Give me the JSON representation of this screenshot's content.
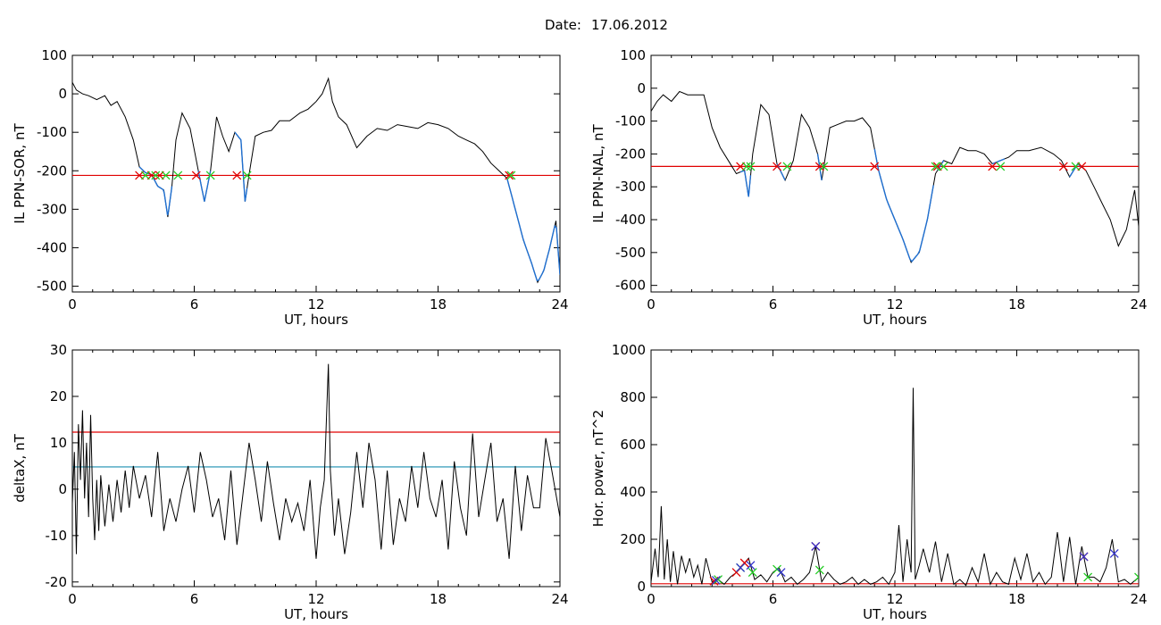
{
  "header": {
    "date_label": "Date:",
    "date_value": "17.06.2012"
  },
  "colors": {
    "trace": "#000000",
    "threshold": "#e00000",
    "secondary_threshold": "#1a8fb0",
    "segment": "#1f6fd0",
    "marker_start": "#e00000",
    "marker_end": "#22cc22",
    "marker_peak": "#3333cc"
  },
  "chart_data": [
    {
      "type": "line",
      "xlabel": "UT, hours",
      "ylabel": "IL PPN-SOR, nT",
      "xlim": [
        0,
        24
      ],
      "ylim": [
        -515,
        100
      ],
      "xticks": [
        "0",
        "6",
        "12",
        "18",
        "24"
      ],
      "yticks": [
        "100",
        "0",
        "-100",
        "-200",
        "-300",
        "-400",
        "-500"
      ],
      "threshold": -212,
      "series": [
        {
          "x": [
            0,
            0.2,
            0.5,
            0.8,
            1.2,
            1.6,
            1.9,
            2.2,
            2.6,
            3.0,
            3.3,
            3.6,
            3.9,
            4.2,
            4.5,
            4.7,
            4.9,
            5.1,
            5.4,
            5.8,
            6.2,
            6.5,
            6.8,
            7.1,
            7.4,
            7.7,
            8.0,
            8.3,
            8.5,
            8.7,
            9.0,
            9.4,
            9.8,
            10.2,
            10.7,
            11.2,
            11.6,
            12.0,
            12.3,
            12.6,
            12.8,
            13.1,
            13.5,
            14.0,
            14.5,
            15.0,
            15.5,
            16.0,
            16.5,
            17.0,
            17.5,
            18.0,
            18.5,
            19.0,
            19.4,
            19.8,
            20.2,
            20.6,
            21.0,
            21.4,
            21.8,
            22.2,
            22.6,
            22.9,
            23.2,
            23.5,
            23.8,
            24.0
          ],
          "y": [
            30,
            10,
            0,
            -5,
            -15,
            -5,
            -30,
            -20,
            -60,
            -120,
            -190,
            -205,
            -210,
            -240,
            -250,
            -320,
            -240,
            -120,
            -50,
            -90,
            -200,
            -280,
            -200,
            -60,
            -110,
            -150,
            -100,
            -120,
            -280,
            -210,
            -110,
            -100,
            -95,
            -70,
            -70,
            -50,
            -40,
            -20,
            0,
            40,
            -20,
            -60,
            -80,
            -140,
            -110,
            -90,
            -95,
            -80,
            -85,
            -90,
            -75,
            -80,
            -90,
            -110,
            -120,
            -130,
            -150,
            -180,
            -200,
            -220,
            -300,
            -380,
            -440,
            -490,
            -460,
            -400,
            -330,
            -470
          ]
        }
      ],
      "segments": [
        [
          3.3,
          4.9
        ],
        [
          6.2,
          6.8
        ],
        [
          8.0,
          8.6
        ],
        [
          21.4,
          24.0
        ]
      ],
      "markers_start": [
        3.3,
        3.9,
        4.3,
        6.1,
        8.1,
        21.5
      ],
      "markers_end": [
        3.6,
        4.1,
        4.6,
        5.2,
        6.8,
        8.6,
        21.6
      ]
    },
    {
      "type": "line",
      "xlabel": "UT, hours",
      "ylabel": "IL PPN-NAL, nT",
      "xlim": [
        0,
        24
      ],
      "ylim": [
        -620,
        100
      ],
      "xticks": [
        "0",
        "6",
        "12",
        "18",
        "24"
      ],
      "yticks": [
        "100",
        "0",
        "-100",
        "-200",
        "-300",
        "-400",
        "-500",
        "-600"
      ],
      "threshold": -238,
      "series": [
        {
          "x": [
            0,
            0.3,
            0.6,
            1.0,
            1.4,
            1.8,
            2.2,
            2.6,
            3.0,
            3.4,
            3.8,
            4.2,
            4.6,
            4.8,
            5.0,
            5.4,
            5.8,
            6.2,
            6.6,
            7.0,
            7.4,
            7.8,
            8.2,
            8.4,
            8.8,
            9.2,
            9.6,
            10.0,
            10.4,
            10.8,
            11.2,
            11.6,
            12.0,
            12.4,
            12.8,
            13.2,
            13.6,
            14.0,
            14.4,
            14.8,
            15.2,
            15.6,
            16.0,
            16.4,
            16.8,
            17.2,
            17.6,
            18.0,
            18.6,
            19.2,
            19.8,
            20.2,
            20.6,
            21.0,
            21.4,
            21.8,
            22.2,
            22.6,
            23.0,
            23.4,
            23.8,
            24.0
          ],
          "y": [
            -70,
            -40,
            -20,
            -40,
            -10,
            -20,
            -20,
            -20,
            -120,
            -180,
            -220,
            -260,
            -250,
            -330,
            -200,
            -50,
            -80,
            -230,
            -280,
            -220,
            -80,
            -120,
            -200,
            -280,
            -120,
            -110,
            -100,
            -100,
            -90,
            -120,
            -250,
            -340,
            -400,
            -460,
            -530,
            -500,
            -400,
            -260,
            -220,
            -230,
            -180,
            -190,
            -190,
            -200,
            -230,
            -220,
            -210,
            -190,
            -190,
            -180,
            -200,
            -220,
            -270,
            -230,
            -250,
            -300,
            -350,
            -400,
            -480,
            -430,
            -310,
            -420
          ]
        }
      ],
      "segments": [
        [
          4.4,
          4.9
        ],
        [
          6.2,
          6.6
        ],
        [
          8.2,
          8.4
        ],
        [
          11.0,
          13.9
        ],
        [
          14.1,
          14.4
        ],
        [
          16.8,
          17.4
        ],
        [
          20.6,
          21.2
        ]
      ],
      "markers_start": [
        4.4,
        6.2,
        8.3,
        11.0,
        14.1,
        16.8,
        20.3,
        21.2
      ],
      "markers_end": [
        4.7,
        4.9,
        6.7,
        8.5,
        14.0,
        14.4,
        17.2,
        20.9
      ]
    },
    {
      "type": "line",
      "xlabel": "UT, hours",
      "ylabel": "deltaX, nT",
      "xlim": [
        0,
        24
      ],
      "ylim": [
        -21,
        30
      ],
      "xticks": [
        "0",
        "6",
        "12",
        "18",
        "24"
      ],
      "yticks": [
        "30",
        "20",
        "10",
        "0",
        "-10",
        "-20"
      ],
      "thresholds": [
        12.3,
        4.8
      ],
      "series": [
        {
          "x": [
            0,
            0.1,
            0.2,
            0.3,
            0.4,
            0.5,
            0.6,
            0.7,
            0.8,
            0.9,
            1.0,
            1.1,
            1.2,
            1.3,
            1.4,
            1.6,
            1.8,
            2.0,
            2.2,
            2.4,
            2.6,
            2.8,
            3.0,
            3.3,
            3.6,
            3.9,
            4.2,
            4.5,
            4.8,
            5.1,
            5.4,
            5.7,
            6.0,
            6.3,
            6.6,
            6.9,
            7.2,
            7.5,
            7.8,
            8.1,
            8.4,
            8.7,
            9.0,
            9.3,
            9.6,
            9.9,
            10.2,
            10.5,
            10.8,
            11.1,
            11.4,
            11.7,
            12.0,
            12.2,
            12.4,
            12.6,
            12.7,
            12.9,
            13.1,
            13.4,
            13.7,
            14.0,
            14.3,
            14.6,
            14.9,
            15.2,
            15.5,
            15.8,
            16.1,
            16.4,
            16.7,
            17.0,
            17.3,
            17.6,
            17.9,
            18.2,
            18.5,
            18.8,
            19.1,
            19.4,
            19.7,
            20.0,
            20.3,
            20.6,
            20.9,
            21.2,
            21.5,
            21.8,
            22.1,
            22.4,
            22.7,
            23.0,
            23.3,
            23.6,
            24.0
          ],
          "y": [
            -3,
            8,
            -14,
            14,
            2,
            17,
            -2,
            10,
            -6,
            16,
            -2,
            -11,
            2,
            -9,
            3,
            -8,
            1,
            -7,
            2,
            -5,
            4,
            -4,
            5,
            -2,
            3,
            -6,
            8,
            -9,
            -2,
            -7,
            0,
            5,
            -5,
            8,
            2,
            -6,
            -2,
            -11,
            4,
            -12,
            -1,
            10,
            2,
            -7,
            6,
            -3,
            -11,
            -2,
            -7,
            -3,
            -9,
            2,
            -15,
            -4,
            2,
            27,
            4,
            -10,
            -2,
            -14,
            -5,
            8,
            -4,
            10,
            2,
            -13,
            4,
            -12,
            -2,
            -7,
            5,
            -4,
            8,
            -2,
            -6,
            2,
            -13,
            6,
            -4,
            -10,
            12,
            -6,
            2,
            10,
            -7,
            -2,
            -15,
            5,
            -9,
            3,
            -4,
            -4,
            11,
            4,
            -6
          ]
        }
      ]
    },
    {
      "type": "line",
      "xlabel": "UT, hours",
      "ylabel": "Hor. power, nT^2",
      "xlim": [
        0,
        24
      ],
      "ylim": [
        0,
        1000
      ],
      "xticks": [
        "0",
        "6",
        "12",
        "18",
        "24"
      ],
      "yticks": [
        "1000",
        "800",
        "600",
        "400",
        "200",
        "0"
      ],
      "threshold": 12,
      "series": [
        {
          "x": [
            0,
            0.2,
            0.35,
            0.5,
            0.65,
            0.8,
            0.95,
            1.1,
            1.3,
            1.5,
            1.7,
            1.9,
            2.1,
            2.3,
            2.5,
            2.7,
            3.0,
            3.3,
            3.6,
            3.9,
            4.2,
            4.5,
            4.8,
            5.1,
            5.4,
            5.7,
            6.0,
            6.3,
            6.6,
            6.9,
            7.2,
            7.5,
            7.8,
            8.1,
            8.4,
            8.7,
            9.0,
            9.3,
            9.6,
            9.9,
            10.2,
            10.5,
            10.8,
            11.1,
            11.4,
            11.7,
            12.0,
            12.2,
            12.4,
            12.6,
            12.8,
            12.9,
            13.0,
            13.2,
            13.4,
            13.7,
            14.0,
            14.3,
            14.6,
            14.9,
            15.2,
            15.5,
            15.8,
            16.1,
            16.4,
            16.7,
            17.0,
            17.3,
            17.6,
            17.9,
            18.2,
            18.5,
            18.8,
            19.1,
            19.4,
            19.7,
            20.0,
            20.3,
            20.6,
            20.9,
            21.2,
            21.5,
            21.8,
            22.1,
            22.4,
            22.7,
            23.0,
            23.3,
            23.6,
            24.0
          ],
          "y": [
            20,
            160,
            40,
            340,
            30,
            200,
            20,
            150,
            10,
            130,
            60,
            120,
            40,
            90,
            10,
            120,
            20,
            30,
            10,
            40,
            60,
            90,
            120,
            30,
            50,
            20,
            60,
            80,
            20,
            40,
            10,
            30,
            60,
            170,
            20,
            60,
            30,
            10,
            20,
            40,
            10,
            30,
            10,
            20,
            40,
            10,
            60,
            260,
            20,
            200,
            60,
            840,
            30,
            90,
            160,
            60,
            190,
            20,
            140,
            10,
            30,
            5,
            80,
            20,
            140,
            10,
            60,
            20,
            10,
            120,
            30,
            140,
            20,
            60,
            10,
            40,
            230,
            20,
            210,
            10,
            170,
            40,
            40,
            20,
            80,
            200,
            20,
            30,
            10,
            40
          ]
        }
      ],
      "markers_start": [
        3.1,
        4.2,
        4.6,
        8.1,
        21.3
      ],
      "markers_end": [
        3.3,
        4.4,
        5.0,
        6.2,
        8.3,
        21.5,
        24.0
      ],
      "markers_peak": [
        3.2,
        4.4,
        4.9,
        6.4,
        8.1,
        21.3,
        22.8
      ]
    }
  ]
}
